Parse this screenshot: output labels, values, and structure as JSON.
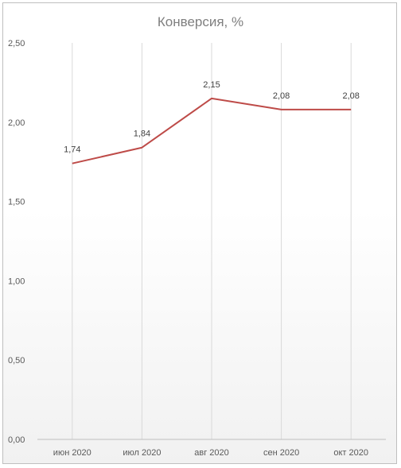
{
  "chart_data": {
    "type": "line",
    "title": "Конверсия, %",
    "categories": [
      "июн 2020",
      "июл 2020",
      "авг 2020",
      "сен 2020",
      "окт 2020"
    ],
    "values": [
      1.74,
      1.84,
      2.15,
      2.08,
      2.08
    ],
    "data_labels": [
      "1,74",
      "1,84",
      "2,15",
      "2,08",
      "2,08"
    ],
    "y_ticks": [
      "0,00",
      "0,50",
      "1,00",
      "1,50",
      "2,00",
      "2,50"
    ],
    "ylim": [
      0,
      2.5
    ],
    "xlabel": "",
    "ylabel": "",
    "grid": "vertical",
    "legend": "none",
    "line_color": "#be4b48"
  }
}
